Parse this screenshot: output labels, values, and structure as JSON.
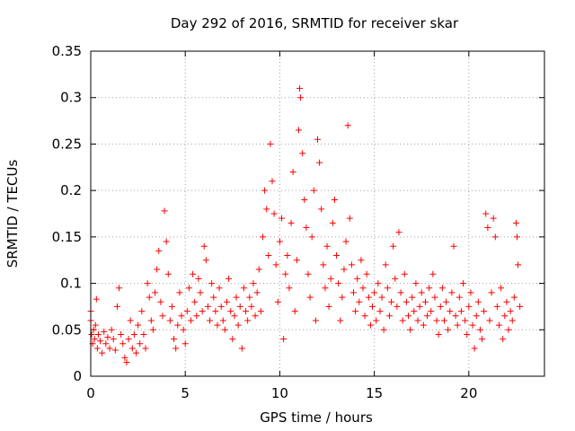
{
  "chart_data": {
    "type": "scatter",
    "title": "Day 292 of 2016, SRMTID for receiver skar",
    "xlabel": "GPS time / hours",
    "ylabel": "SRMTID / TECUs",
    "xlim": [
      0,
      24
    ],
    "ylim": [
      0,
      0.35
    ],
    "xticks": [
      "0",
      "5",
      "10",
      "15",
      "20"
    ],
    "yticks": [
      "0",
      "0.05",
      "0.1",
      "0.15",
      "0.2",
      "0.25",
      "0.3",
      "0.35"
    ],
    "grid": true,
    "marker": "+",
    "color": "#ff0000",
    "series": [
      {
        "name": "SRMTID",
        "points": [
          [
            0.0,
            0.07
          ],
          [
            0.0,
            0.06
          ],
          [
            0.05,
            0.045
          ],
          [
            0.1,
            0.035
          ],
          [
            0.15,
            0.05
          ],
          [
            0.2,
            0.04
          ],
          [
            0.25,
            0.055
          ],
          [
            0.3,
            0.083
          ],
          [
            0.35,
            0.03
          ],
          [
            0.4,
            0.045
          ],
          [
            0.5,
            0.038
          ],
          [
            0.6,
            0.025
          ],
          [
            0.7,
            0.048
          ],
          [
            0.8,
            0.035
          ],
          [
            0.9,
            0.042
          ],
          [
            1.0,
            0.03
          ],
          [
            1.1,
            0.05
          ],
          [
            1.2,
            0.04
          ],
          [
            1.3,
            0.028
          ],
          [
            1.4,
            0.075
          ],
          [
            1.5,
            0.095
          ],
          [
            1.6,
            0.045
          ],
          [
            1.7,
            0.035
          ],
          [
            1.8,
            0.02
          ],
          [
            1.9,
            0.015
          ],
          [
            2.0,
            0.04
          ],
          [
            2.1,
            0.06
          ],
          [
            2.2,
            0.03
          ],
          [
            2.3,
            0.045
          ],
          [
            2.4,
            0.025
          ],
          [
            2.5,
            0.055
          ],
          [
            2.6,
            0.035
          ],
          [
            2.7,
            0.07
          ],
          [
            2.8,
            0.045
          ],
          [
            2.9,
            0.03
          ],
          [
            3.0,
            0.1
          ],
          [
            3.1,
            0.085
          ],
          [
            3.2,
            0.06
          ],
          [
            3.3,
            0.05
          ],
          [
            3.4,
            0.09
          ],
          [
            3.5,
            0.115
          ],
          [
            3.6,
            0.135
          ],
          [
            3.7,
            0.08
          ],
          [
            3.8,
            0.065
          ],
          [
            3.9,
            0.178
          ],
          [
            4.0,
            0.145
          ],
          [
            4.1,
            0.11
          ],
          [
            4.2,
            0.06
          ],
          [
            4.3,
            0.075
          ],
          [
            4.4,
            0.04
          ],
          [
            4.5,
            0.03
          ],
          [
            4.6,
            0.055
          ],
          [
            4.7,
            0.09
          ],
          [
            4.8,
            0.065
          ],
          [
            4.9,
            0.05
          ],
          [
            5.0,
            0.035
          ],
          [
            5.1,
            0.07
          ],
          [
            5.2,
            0.095
          ],
          [
            5.3,
            0.06
          ],
          [
            5.4,
            0.11
          ],
          [
            5.5,
            0.08
          ],
          [
            5.6,
            0.065
          ],
          [
            5.7,
            0.105
          ],
          [
            5.8,
            0.09
          ],
          [
            5.9,
            0.07
          ],
          [
            6.0,
            0.14
          ],
          [
            6.1,
            0.125
          ],
          [
            6.2,
            0.075
          ],
          [
            6.3,
            0.06
          ],
          [
            6.4,
            0.1
          ],
          [
            6.5,
            0.085
          ],
          [
            6.6,
            0.07
          ],
          [
            6.7,
            0.055
          ],
          [
            6.8,
            0.095
          ],
          [
            6.9,
            0.075
          ],
          [
            7.0,
            0.06
          ],
          [
            7.1,
            0.05
          ],
          [
            7.2,
            0.08
          ],
          [
            7.3,
            0.105
          ],
          [
            7.4,
            0.07
          ],
          [
            7.5,
            0.04
          ],
          [
            7.6,
            0.065
          ],
          [
            7.7,
            0.085
          ],
          [
            7.8,
            0.055
          ],
          [
            7.9,
            0.075
          ],
          [
            8.0,
            0.03
          ],
          [
            8.1,
            0.095
          ],
          [
            8.2,
            0.07
          ],
          [
            8.3,
            0.06
          ],
          [
            8.4,
            0.085
          ],
          [
            8.5,
            0.075
          ],
          [
            8.6,
            0.1
          ],
          [
            8.7,
            0.065
          ],
          [
            8.8,
            0.09
          ],
          [
            8.9,
            0.115
          ],
          [
            9.0,
            0.07
          ],
          [
            9.1,
            0.15
          ],
          [
            9.2,
            0.2
          ],
          [
            9.3,
            0.18
          ],
          [
            9.4,
            0.13
          ],
          [
            9.5,
            0.25
          ],
          [
            9.6,
            0.21
          ],
          [
            9.7,
            0.175
          ],
          [
            9.8,
            0.12
          ],
          [
            9.9,
            0.08
          ],
          [
            10.0,
            0.145
          ],
          [
            10.1,
            0.17
          ],
          [
            10.2,
            0.04
          ],
          [
            10.3,
            0.11
          ],
          [
            10.4,
            0.13
          ],
          [
            10.5,
            0.095
          ],
          [
            10.6,
            0.165
          ],
          [
            10.7,
            0.22
          ],
          [
            10.8,
            0.07
          ],
          [
            10.9,
            0.125
          ],
          [
            11.0,
            0.265
          ],
          [
            11.05,
            0.31
          ],
          [
            11.1,
            0.3
          ],
          [
            11.2,
            0.24
          ],
          [
            11.3,
            0.19
          ],
          [
            11.4,
            0.16
          ],
          [
            11.5,
            0.11
          ],
          [
            11.6,
            0.085
          ],
          [
            11.7,
            0.15
          ],
          [
            11.8,
            0.2
          ],
          [
            11.9,
            0.06
          ],
          [
            12.0,
            0.255
          ],
          [
            12.1,
            0.23
          ],
          [
            12.2,
            0.18
          ],
          [
            12.3,
            0.12
          ],
          [
            12.4,
            0.095
          ],
          [
            12.5,
            0.14
          ],
          [
            12.6,
            0.075
          ],
          [
            12.7,
            0.105
          ],
          [
            12.8,
            0.165
          ],
          [
            12.9,
            0.19
          ],
          [
            13.0,
            0.13
          ],
          [
            13.1,
            0.1
          ],
          [
            13.2,
            0.06
          ],
          [
            13.3,
            0.085
          ],
          [
            13.4,
            0.115
          ],
          [
            13.5,
            0.145
          ],
          [
            13.6,
            0.27
          ],
          [
            13.7,
            0.17
          ],
          [
            13.8,
            0.12
          ],
          [
            13.9,
            0.09
          ],
          [
            14.0,
            0.07
          ],
          [
            14.1,
            0.105
          ],
          [
            14.2,
            0.08
          ],
          [
            14.3,
            0.125
          ],
          [
            14.4,
            0.095
          ],
          [
            14.5,
            0.065
          ],
          [
            14.6,
            0.11
          ],
          [
            14.7,
            0.085
          ],
          [
            14.8,
            0.055
          ],
          [
            14.9,
            0.075
          ],
          [
            15.0,
            0.09
          ],
          [
            15.1,
            0.06
          ],
          [
            15.2,
            0.1
          ],
          [
            15.3,
            0.07
          ],
          [
            15.4,
            0.085
          ],
          [
            15.5,
            0.05
          ],
          [
            15.6,
            0.12
          ],
          [
            15.7,
            0.095
          ],
          [
            15.8,
            0.065
          ],
          [
            15.9,
            0.08
          ],
          [
            16.0,
            0.14
          ],
          [
            16.1,
            0.105
          ],
          [
            16.2,
            0.075
          ],
          [
            16.3,
            0.155
          ],
          [
            16.4,
            0.09
          ],
          [
            16.5,
            0.06
          ],
          [
            16.6,
            0.11
          ],
          [
            16.7,
            0.08
          ],
          [
            16.8,
            0.065
          ],
          [
            16.9,
            0.05
          ],
          [
            17.0,
            0.085
          ],
          [
            17.1,
            0.07
          ],
          [
            17.2,
            0.1
          ],
          [
            17.3,
            0.06
          ],
          [
            17.4,
            0.075
          ],
          [
            17.5,
            0.09
          ],
          [
            17.6,
            0.055
          ],
          [
            17.7,
            0.08
          ],
          [
            17.8,
            0.065
          ],
          [
            17.9,
            0.095
          ],
          [
            18.0,
            0.07
          ],
          [
            18.1,
            0.11
          ],
          [
            18.2,
            0.085
          ],
          [
            18.3,
            0.06
          ],
          [
            18.4,
            0.045
          ],
          [
            18.5,
            0.075
          ],
          [
            18.6,
            0.095
          ],
          [
            18.7,
            0.06
          ],
          [
            18.8,
            0.08
          ],
          [
            18.9,
            0.05
          ],
          [
            19.0,
            0.07
          ],
          [
            19.1,
            0.09
          ],
          [
            19.2,
            0.14
          ],
          [
            19.3,
            0.065
          ],
          [
            19.4,
            0.055
          ],
          [
            19.5,
            0.085
          ],
          [
            19.6,
            0.07
          ],
          [
            19.7,
            0.1
          ],
          [
            19.8,
            0.06
          ],
          [
            19.9,
            0.045
          ],
          [
            20.0,
            0.075
          ],
          [
            20.1,
            0.09
          ],
          [
            20.2,
            0.055
          ],
          [
            20.3,
            0.03
          ],
          [
            20.4,
            0.065
          ],
          [
            20.5,
            0.08
          ],
          [
            20.6,
            0.05
          ],
          [
            20.7,
            0.04
          ],
          [
            20.8,
            0.07
          ],
          [
            20.9,
            0.175
          ],
          [
            21.0,
            0.16
          ],
          [
            21.1,
            0.06
          ],
          [
            21.2,
            0.09
          ],
          [
            21.3,
            0.17
          ],
          [
            21.4,
            0.15
          ],
          [
            21.5,
            0.075
          ],
          [
            21.6,
            0.055
          ],
          [
            21.7,
            0.095
          ],
          [
            21.8,
            0.04
          ],
          [
            21.9,
            0.065
          ],
          [
            22.0,
            0.08
          ],
          [
            22.1,
            0.05
          ],
          [
            22.2,
            0.07
          ],
          [
            22.3,
            0.06
          ],
          [
            22.4,
            0.085
          ],
          [
            22.5,
            0.165
          ],
          [
            22.55,
            0.15
          ],
          [
            22.6,
            0.12
          ],
          [
            22.7,
            0.075
          ]
        ]
      }
    ]
  }
}
